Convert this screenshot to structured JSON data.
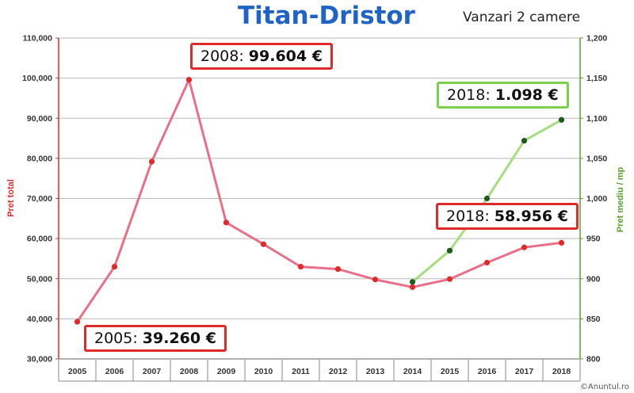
{
  "title": "Titan-Dristor",
  "subtitle": "Vanzari 2 camere",
  "credit": "©Anuntul.ro",
  "colors": {
    "total": "#e8708a",
    "total_point": "#e02b2b",
    "mp": "#a6de7e",
    "mp_point": "#1e5a1e",
    "left_axis": "#e02b2b",
    "right_axis": "#5aa02c",
    "title": "#1f63c6"
  },
  "chart_data": {
    "type": "line",
    "categories": [
      "2005",
      "2006",
      "2007",
      "2008",
      "2009",
      "2010",
      "2011",
      "2012",
      "2013",
      "2014",
      "2015",
      "2016",
      "2017",
      "2018"
    ],
    "series": [
      {
        "name": "",
        "axis": "left",
        "values": [
          39260,
          53000,
          79200,
          99604,
          64000,
          58600,
          53000,
          52400,
          49800,
          47900,
          49900,
          54000,
          57800,
          58956
        ]
      },
      {
        "name": "",
        "axis": "right",
        "values": [
          null,
          null,
          null,
          null,
          null,
          null,
          null,
          null,
          null,
          896,
          935,
          1000,
          1072,
          1098
        ]
      }
    ],
    "ylabel": "Pret total",
    "y2label": "Pret mediu / mp",
    "ylim": [
      30000,
      110000
    ],
    "y2lim": [
      800,
      1200
    ],
    "yticks": [
      "30,000",
      "40,000",
      "50,000",
      "60,000",
      "70,000",
      "80,000",
      "90,000",
      "100,000",
      "110,000"
    ],
    "y2ticks": [
      "800",
      "850",
      "900",
      "950",
      "1,000",
      "1,050",
      "1,100",
      "1,150",
      "1,200"
    ],
    "grid": true,
    "annotations": [
      {
        "prefix": "2008: ",
        "value": "99.604 €",
        "color": "red"
      },
      {
        "prefix": "2005: ",
        "value": "39.260 €",
        "color": "red"
      },
      {
        "prefix": "2018: ",
        "value": "58.956 €",
        "color": "red"
      },
      {
        "prefix": "2018: ",
        "value": "1.098 €",
        "color": "green"
      }
    ]
  }
}
